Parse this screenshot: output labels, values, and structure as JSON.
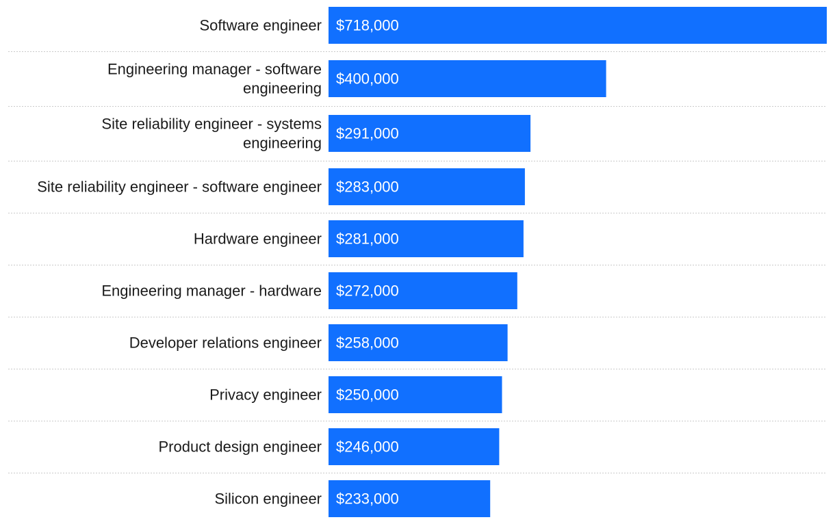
{
  "chart_data": {
    "type": "bar",
    "orientation": "horizontal",
    "title": "",
    "xlabel": "",
    "ylabel": "",
    "grid": false,
    "xlim": [
      0,
      718000
    ],
    "bar_color": "#1170ff",
    "categories": [
      [
        "Software engineer"
      ],
      [
        "Engineering manager - software",
        "engineering"
      ],
      [
        "Site reliability engineer - systems",
        "engineering"
      ],
      [
        "Site reliability engineer - software engineer"
      ],
      [
        "Hardware engineer"
      ],
      [
        "Engineering manager - hardware"
      ],
      [
        "Developer relations engineer"
      ],
      [
        "Privacy engineer"
      ],
      [
        "Product design engineer"
      ],
      [
        "Silicon engineer"
      ]
    ],
    "values": [
      718000,
      400000,
      291000,
      283000,
      281000,
      272000,
      258000,
      250000,
      246000,
      233000
    ],
    "value_labels": [
      "$718,000",
      "$400,000",
      "$291,000",
      "$283,000",
      "$281,000",
      "$272,000",
      "$258,000",
      "$250,000",
      "$246,000",
      "$233,000"
    ]
  }
}
